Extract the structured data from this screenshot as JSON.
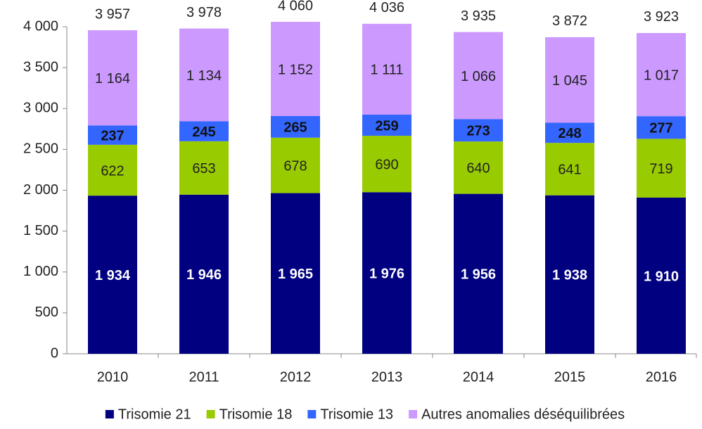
{
  "chart_data": {
    "type": "stacked_bar",
    "categories": [
      "2010",
      "2011",
      "2012",
      "2013",
      "2014",
      "2015",
      "2016"
    ],
    "series": [
      {
        "name": "Trisomie 21",
        "color": "#000080",
        "label_color": "#ffffff",
        "label_bold": true,
        "values": [
          1934,
          1946,
          1965,
          1976,
          1956,
          1938,
          1910
        ],
        "value_labels": [
          "1 934",
          "1 946",
          "1 965",
          "1 976",
          "1 956",
          "1 938",
          "1 910"
        ]
      },
      {
        "name": "Trisomie 18",
        "color": "#99cc00",
        "label_color": "#222222",
        "label_bold": false,
        "values": [
          622,
          653,
          678,
          690,
          640,
          641,
          719
        ]
      },
      {
        "name": "Trisomie 13",
        "color": "#3366ff",
        "label_color": "#111111",
        "label_bold": true,
        "values": [
          237,
          245,
          265,
          259,
          273,
          248,
          277
        ]
      },
      {
        "name": "Autres anomalies déséquilibrées",
        "color": "#cc99ff",
        "label_color": "#222222",
        "label_bold": false,
        "values": [
          1164,
          1134,
          1152,
          1111,
          1066,
          1045,
          1017
        ],
        "value_labels": [
          "1 164",
          "1 134",
          "1 152",
          "1 111",
          "1 066",
          "1 045",
          "1 017"
        ]
      }
    ],
    "totals": [
      3957,
      3978,
      4060,
      4036,
      3935,
      3872,
      3923
    ],
    "total_labels": [
      "3 957",
      "3 978",
      "4 060",
      "4 036",
      "3 935",
      "3 872",
      "3 923"
    ],
    "ylim": [
      0,
      4000
    ],
    "yticks": [
      0,
      500,
      {
        "value": 1000,
        "label": "1 000"
      },
      {
        "value": 1500,
        "label": "1 500"
      },
      {
        "value": 2000,
        "label": "2 000"
      },
      {
        "value": 2500,
        "label": "2 500"
      },
      {
        "value": 3000,
        "label": "3 000"
      },
      {
        "value": 3500,
        "label": "3 500"
      },
      {
        "value": 4000,
        "label": "4 000"
      }
    ],
    "legend": "bottom"
  }
}
